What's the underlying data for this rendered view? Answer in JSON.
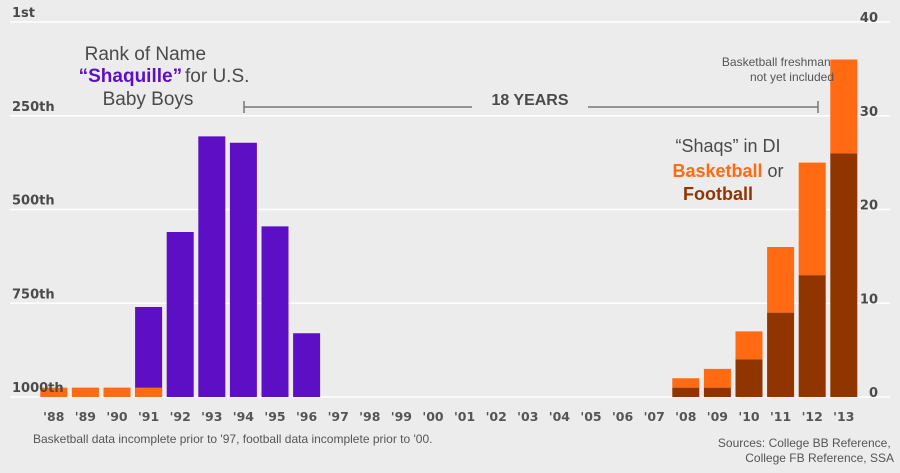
{
  "chart_data": {
    "type": "bar",
    "categories": [
      "'88",
      "'89",
      "'90",
      "'91",
      "'92",
      "'93",
      "'94",
      "'95",
      "'96",
      "'97",
      "'98",
      "'99",
      "'00",
      "'01",
      "'02",
      "'03",
      "'04",
      "'05",
      "'06",
      "'07",
      "'08",
      "'09",
      "'10",
      "'11",
      "'12",
      "'13"
    ],
    "series": [
      {
        "name": "Shaquille",
        "axis": "left",
        "values": [
          null,
          null,
          null,
          760,
          560,
          305,
          322,
          545,
          830,
          null,
          null,
          null,
          null,
          null,
          null,
          null,
          null,
          null,
          null,
          null,
          null,
          null,
          null,
          null,
          null,
          null
        ]
      },
      {
        "name": "Football",
        "axis": "right",
        "values": [
          0,
          0,
          0,
          0,
          0,
          0,
          0,
          0,
          0,
          0,
          0,
          0,
          0,
          0,
          0,
          0,
          0,
          0,
          0,
          0,
          1,
          1,
          4,
          9,
          13,
          26
        ]
      },
      {
        "name": "Basketball",
        "axis": "right",
        "values": [
          1,
          1,
          1,
          1,
          0,
          0,
          0,
          0,
          0,
          0,
          0,
          0,
          0,
          0,
          0,
          0,
          0,
          0,
          0,
          0,
          1,
          2,
          3,
          7,
          12,
          10
        ]
      }
    ],
    "left_axis": {
      "ticks": [
        "1st",
        "250th",
        "500th",
        "750th",
        "1000th"
      ],
      "range": [
        1000,
        1
      ]
    },
    "right_axis": {
      "ticks": [
        "0",
        "10",
        "20",
        "30",
        "40"
      ],
      "range": [
        0,
        40
      ]
    },
    "colors": {
      "shaquille": "#5d0fc6",
      "basketball": "#ff6a12",
      "football": "#913500",
      "grid": "#ffffff",
      "text": "#4a4a4a"
    },
    "grid": true
  },
  "title": {
    "line1": "Rank of Name",
    "name": "“Shaquille”",
    "line2_rest": " for U.S.",
    "line3": "Baby Boys"
  },
  "right_title": {
    "line1": "“Shaqs” in DI",
    "basketball": "Basketball",
    "or": " or",
    "football": "Football"
  },
  "span_label": "18 YEARS",
  "freshman_note": {
    "line1": "Basketball freshman",
    "line2": "not yet included"
  },
  "footnote": "Basketball data incomplete prior to '97, football data incomplete prior to '00.",
  "sources": {
    "line1": "Sources: College BB Reference,",
    "line2": "College FB Reference, SSA"
  }
}
